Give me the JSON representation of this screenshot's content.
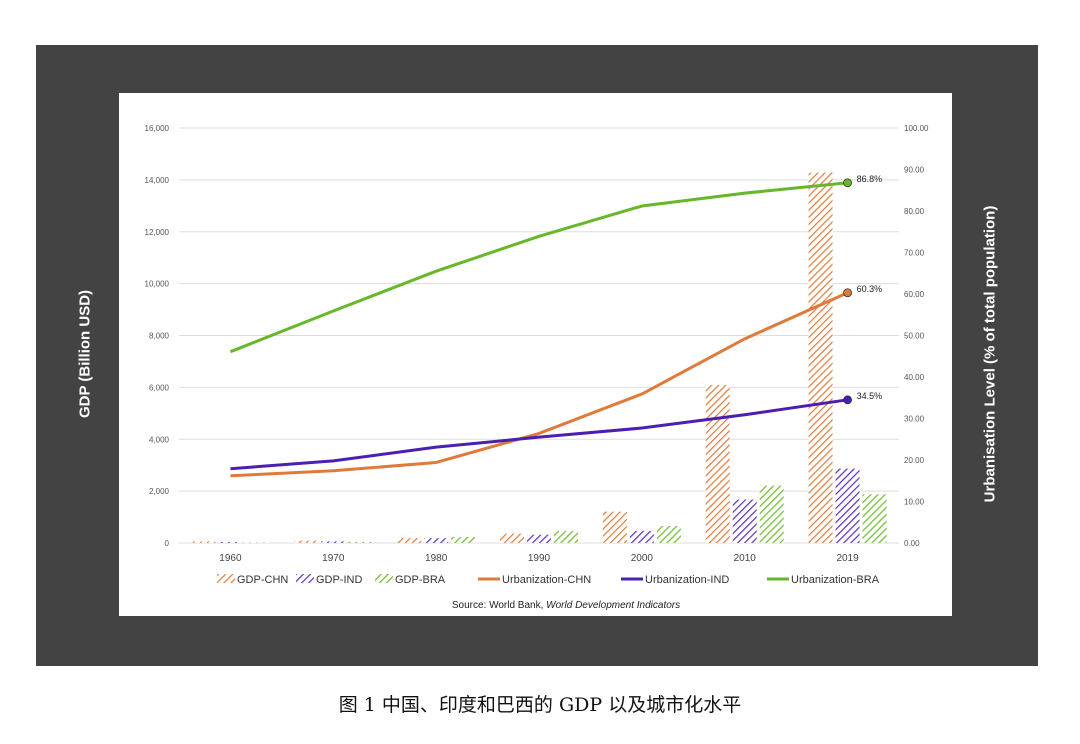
{
  "caption": "图 1  中国、印度和巴西的 GDP 以及城市化水平",
  "chart_data": {
    "type": "bar",
    "categories": [
      "1960",
      "1970",
      "1980",
      "1990",
      "2000",
      "2010",
      "2019"
    ],
    "ylabel": "GDP (Billion USD)",
    "y2label": "Urbanisation Level (% of total population)",
    "ylim": [
      0,
      16000
    ],
    "y2lim": [
      0,
      100
    ],
    "yticks": [
      "0",
      "2,000",
      "4,000",
      "6,000",
      "8,000",
      "10,000",
      "12,000",
      "14,000",
      "16,000"
    ],
    "y2ticks": [
      "0.00",
      "10.00",
      "20.00",
      "30.00",
      "40.00",
      "50.00",
      "60.00",
      "70.00",
      "80.00",
      "90.00",
      "100.00"
    ],
    "grid": true,
    "legend_position": "bottom",
    "source": {
      "prefix": "Source: World Bank, ",
      "italic": "World Development Indicators"
    },
    "bar_series": [
      {
        "name": "GDP-CHN",
        "color": "#e07a3a",
        "values": [
          60,
          90,
          190,
          360,
          1210,
          6090,
          14280
        ]
      },
      {
        "name": "GDP-IND",
        "color": "#5a2fbf",
        "values": [
          37,
          62,
          186,
          320,
          468,
          1676,
          2870
        ]
      },
      {
        "name": "GDP-BRA",
        "color": "#6dbb2a",
        "values": [
          17,
          42,
          235,
          462,
          655,
          2209,
          1877
        ]
      }
    ],
    "line_series": [
      {
        "name": "Urbanization-CHN",
        "color": "#e07a3a",
        "values": [
          16.2,
          17.4,
          19.4,
          26.4,
          35.9,
          49.2,
          60.3
        ],
        "end_label": "60.3%"
      },
      {
        "name": "Urbanization-IND",
        "color": "#4b1fb0",
        "values": [
          17.9,
          19.8,
          23.1,
          25.5,
          27.7,
          30.9,
          34.5
        ],
        "end_label": "34.5%"
      },
      {
        "name": "Urbanization-BRA",
        "color": "#66b82a",
        "values": [
          46.1,
          55.9,
          65.5,
          73.9,
          81.2,
          84.3,
          86.8
        ],
        "end_label": "86.8%"
      }
    ]
  }
}
